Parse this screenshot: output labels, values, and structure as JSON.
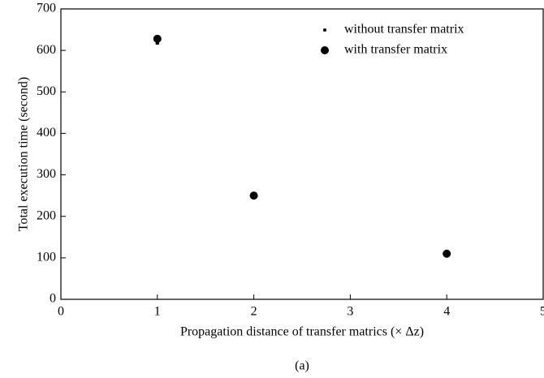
{
  "chart_data": {
    "type": "scatter",
    "xlabel": "Propagation distance of transfer matrics (× Δz)",
    "ylabel": "Total execution time (second)",
    "caption": "(a)",
    "xlim": [
      0,
      5
    ],
    "xticks": [
      0,
      1,
      2,
      3,
      4,
      5
    ],
    "ylim": [
      0,
      700
    ],
    "yticks": [
      0,
      100,
      200,
      300,
      400,
      500,
      600,
      700
    ],
    "legend": "upper right",
    "series": [
      {
        "name": "without transfer matrix",
        "color": "#000000",
        "marker": "square",
        "x": [
          1
        ],
        "values": [
          618
        ]
      },
      {
        "name": "with transfer matrix",
        "color": "#000000",
        "marker": "circle",
        "x": [
          1,
          2,
          4
        ],
        "values": [
          628,
          250,
          110
        ]
      }
    ]
  }
}
